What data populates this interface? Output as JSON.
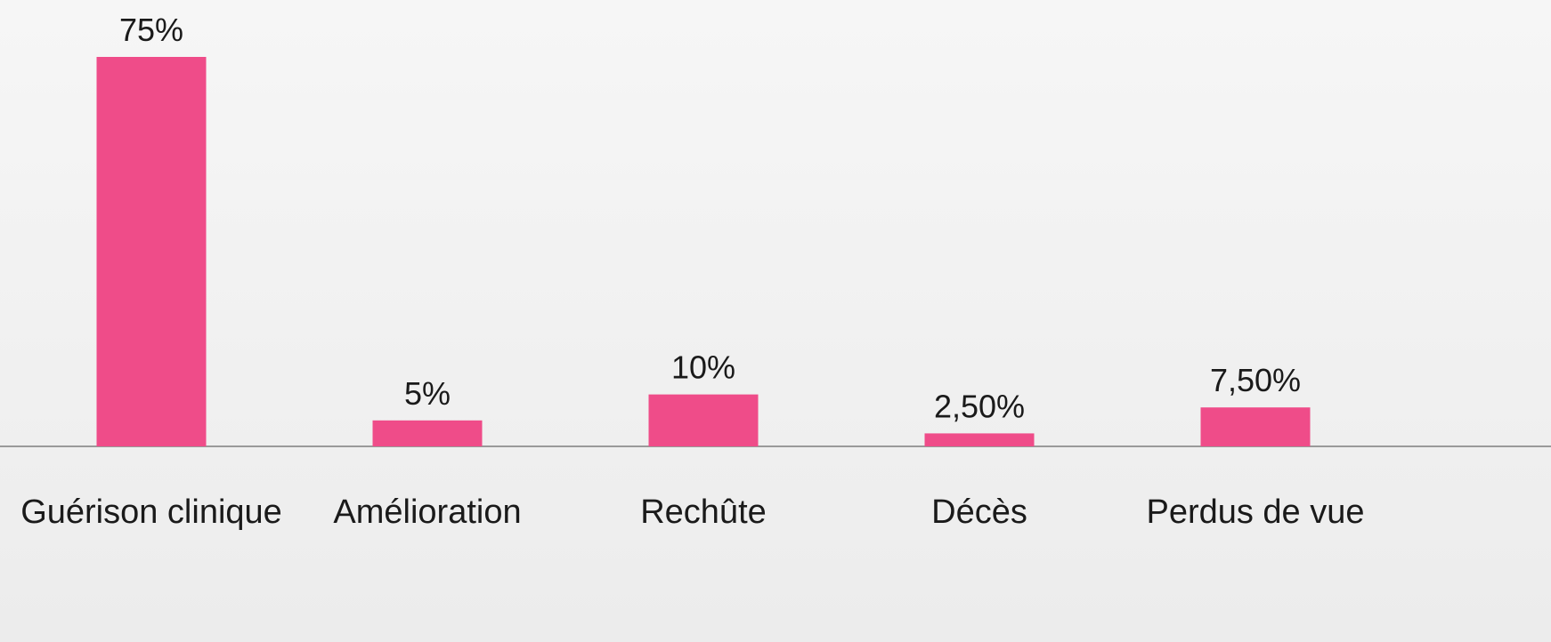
{
  "chart_data": {
    "type": "bar",
    "categories": [
      "Guérison clinique",
      "Amélioration",
      "Rechûte",
      "Décès",
      "Perdus de vue"
    ],
    "values": [
      75,
      5,
      10,
      2.5,
      7.5
    ],
    "value_labels": [
      "75%",
      "5%",
      "10%",
      "2,50%",
      "7,50%"
    ],
    "color": "#ef4c89"
  }
}
